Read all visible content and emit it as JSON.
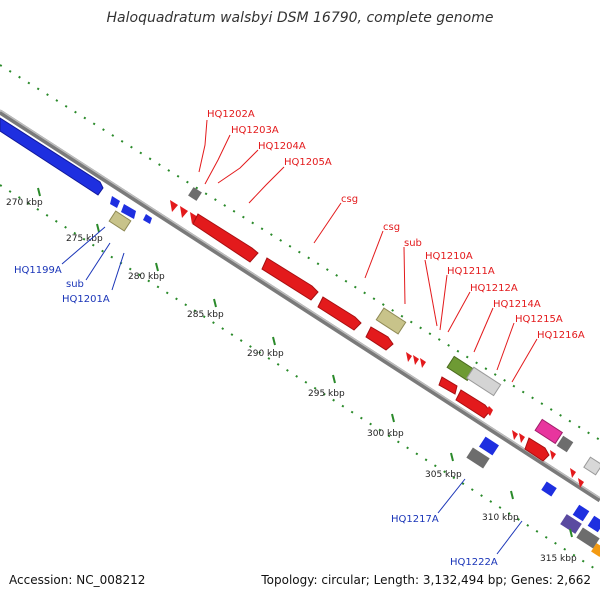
{
  "title": "Haloquadratum walsbyi DSM 16790, complete genome",
  "footer": {
    "accession": "Accession: NC_008212",
    "summary": "Topology: circular; Length: 3,132,494 bp; Genes: 2,662"
  },
  "colors": {
    "backbone": "#8a8a8a",
    "tick_mark": "#2a8a2a",
    "forward_label": "#e31a1c",
    "reverse_label": "#1a35b8",
    "cds": "#e31a1c",
    "cds_reverse": "#1a35b8",
    "trna_gray": "#6d6d6d",
    "khaki": "#c8c38a",
    "olive": "#6e9a34",
    "magenta": "#e8359e",
    "orange": "#f39a12",
    "light_gray": "#cfcfcf",
    "purple": "#5a4aa0"
  },
  "ticks": [
    "270 kbp",
    "275 kbp",
    "280 kbp",
    "285 kbp",
    "290 kbp",
    "295 kbp",
    "300 kbp",
    "305 kbp",
    "310 kbp",
    "315 kbp"
  ],
  "forward_labels": [
    "HQ1202A",
    "HQ1203A",
    "HQ1204A",
    "HQ1205A",
    "csg",
    "csg",
    "sub",
    "HQ1210A",
    "HQ1211A",
    "HQ1212A",
    "HQ1214A",
    "HQ1215A",
    "HQ1216A"
  ],
  "reverse_labels": [
    "HQ1199A",
    "sub",
    "HQ1201A",
    "HQ1217A",
    "HQ1222A"
  ]
}
